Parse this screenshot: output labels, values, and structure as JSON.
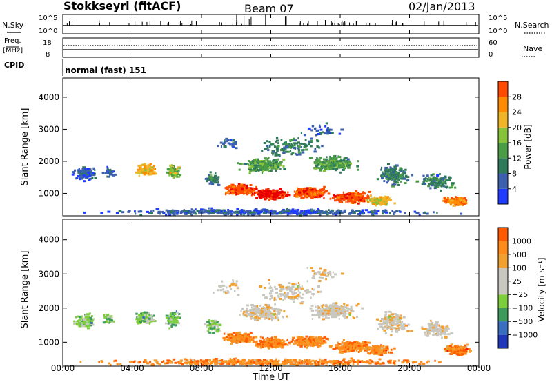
{
  "header": {
    "title": "Stokkseyri (fitACF)",
    "beam": "Beam 07",
    "date": "02/Jan/2013"
  },
  "strip_labels": {
    "nsky": "N.Sky",
    "nsky_ticks": [
      "10^5",
      "10^0"
    ],
    "nsearch": "N.Search",
    "nsearch_ticks": [
      "10^5",
      "10^0"
    ],
    "freq_line1": "Freq.",
    "freq_line2": "[MHz]",
    "freq_ticks": [
      "18",
      "8"
    ],
    "nave": "Nave",
    "nave_ticks": [
      "60",
      "0"
    ],
    "cpid": "CPID",
    "cpid_value": "normal (fast) 151"
  },
  "colors": {
    "power_scale": [
      "#1f3bff",
      "#3c5fae",
      "#2f7a5a",
      "#4a9c46",
      "#86c23a",
      "#f0b428",
      "#ff8c00",
      "#ff4a00",
      "#e80000"
    ],
    "velocity_scale": [
      "#ff1a00",
      "#ff5a00",
      "#ff8c1a",
      "#f2a030",
      "#c8c8c0",
      "#c8c8c0",
      "#7ccf3a",
      "#3d9a5a",
      "#3a6fbf",
      "#2036b8"
    ]
  },
  "chart_data": [
    {
      "type": "heatmap",
      "name": "power",
      "ylabel": "Slant Range [km]",
      "yticks": [
        "1000",
        "2000",
        "3000",
        "4000"
      ],
      "ylim": [
        300,
        4600
      ],
      "colorbar_label": "Power [dB]",
      "colorbar_ticks": [
        "4",
        "8",
        "12",
        "16",
        "20",
        "24",
        "28"
      ],
      "color_range": [
        0,
        31
      ],
      "xlim_hours": [
        0,
        24
      ]
    },
    {
      "type": "heatmap",
      "name": "velocity",
      "ylabel": "Slant Range [km]",
      "yticks": [
        "1000",
        "2000",
        "3000",
        "4000"
      ],
      "ylim": [
        300,
        4600
      ],
      "colorbar_label": "Velocity [m s⁻¹]",
      "colorbar_ticks": [
        "1000",
        "500",
        "100",
        "25",
        "−25",
        "−100",
        "−500",
        "−1000"
      ],
      "xlabel": "Time UT",
      "xticks": [
        "00:00",
        "04:00",
        "08:00",
        "12:00",
        "16:00",
        "20:00",
        "00:00"
      ],
      "xlim_hours": [
        0,
        24
      ]
    }
  ]
}
